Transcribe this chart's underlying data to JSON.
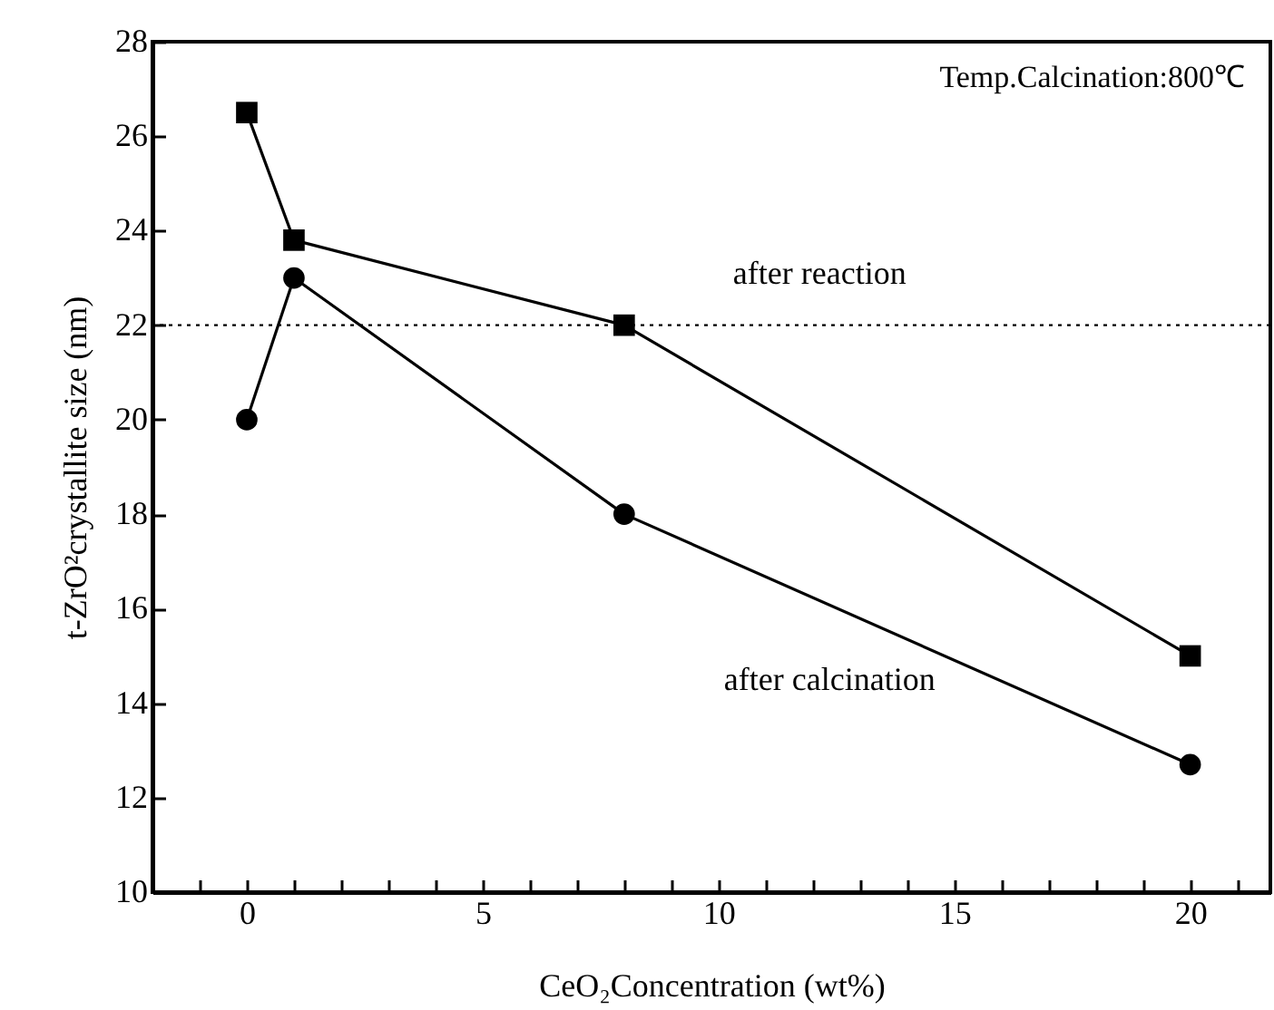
{
  "chart_data": {
    "type": "line",
    "xlabel": "CeO₂Concentration (wt%)",
    "ylabel": "t-ZrO²crystallite size (nm)",
    "x": [
      0,
      1,
      8,
      20
    ],
    "series": [
      {
        "name": "after reaction",
        "color": "#000000",
        "marker": "square",
        "values": [
          26.5,
          23.8,
          22.0,
          15.0
        ]
      },
      {
        "name": "after calcination",
        "color": "#000000",
        "marker": "circle",
        "values": [
          20.0,
          23.0,
          18.0,
          12.7
        ]
      }
    ],
    "xlim": [
      -2,
      21.7
    ],
    "xticks": [
      {
        "value": -1,
        "label": null
      },
      0,
      {
        "value": 1,
        "label": null
      },
      {
        "value": 2,
        "label": null
      },
      {
        "value": 3,
        "label": null
      },
      {
        "value": 4,
        "label": null
      },
      5,
      {
        "value": 6,
        "label": null
      },
      {
        "value": 7,
        "label": null
      },
      {
        "value": 8,
        "label": null
      },
      {
        "value": 9,
        "label": null
      },
      10,
      {
        "value": 11,
        "label": null
      },
      {
        "value": 12,
        "label": null
      },
      {
        "value": 13,
        "label": null
      },
      {
        "value": 14,
        "label": null
      },
      15,
      {
        "value": 16,
        "label": null
      },
      {
        "value": 17,
        "label": null
      },
      {
        "value": 18,
        "label": null
      },
      {
        "value": 19,
        "label": null
      },
      20,
      {
        "value": 21,
        "label": null
      }
    ],
    "ylim": [
      10,
      28
    ],
    "yticks": [
      10,
      12,
      14,
      16,
      18,
      20,
      22,
      24,
      26,
      28
    ],
    "ref_lines": [
      {
        "axis": "y",
        "value": 22,
        "color": "#000000",
        "line_style": "dotted"
      }
    ],
    "annotations": [
      "Temp.Calcination:800℃"
    ],
    "grid": false,
    "line_style": "solid"
  }
}
